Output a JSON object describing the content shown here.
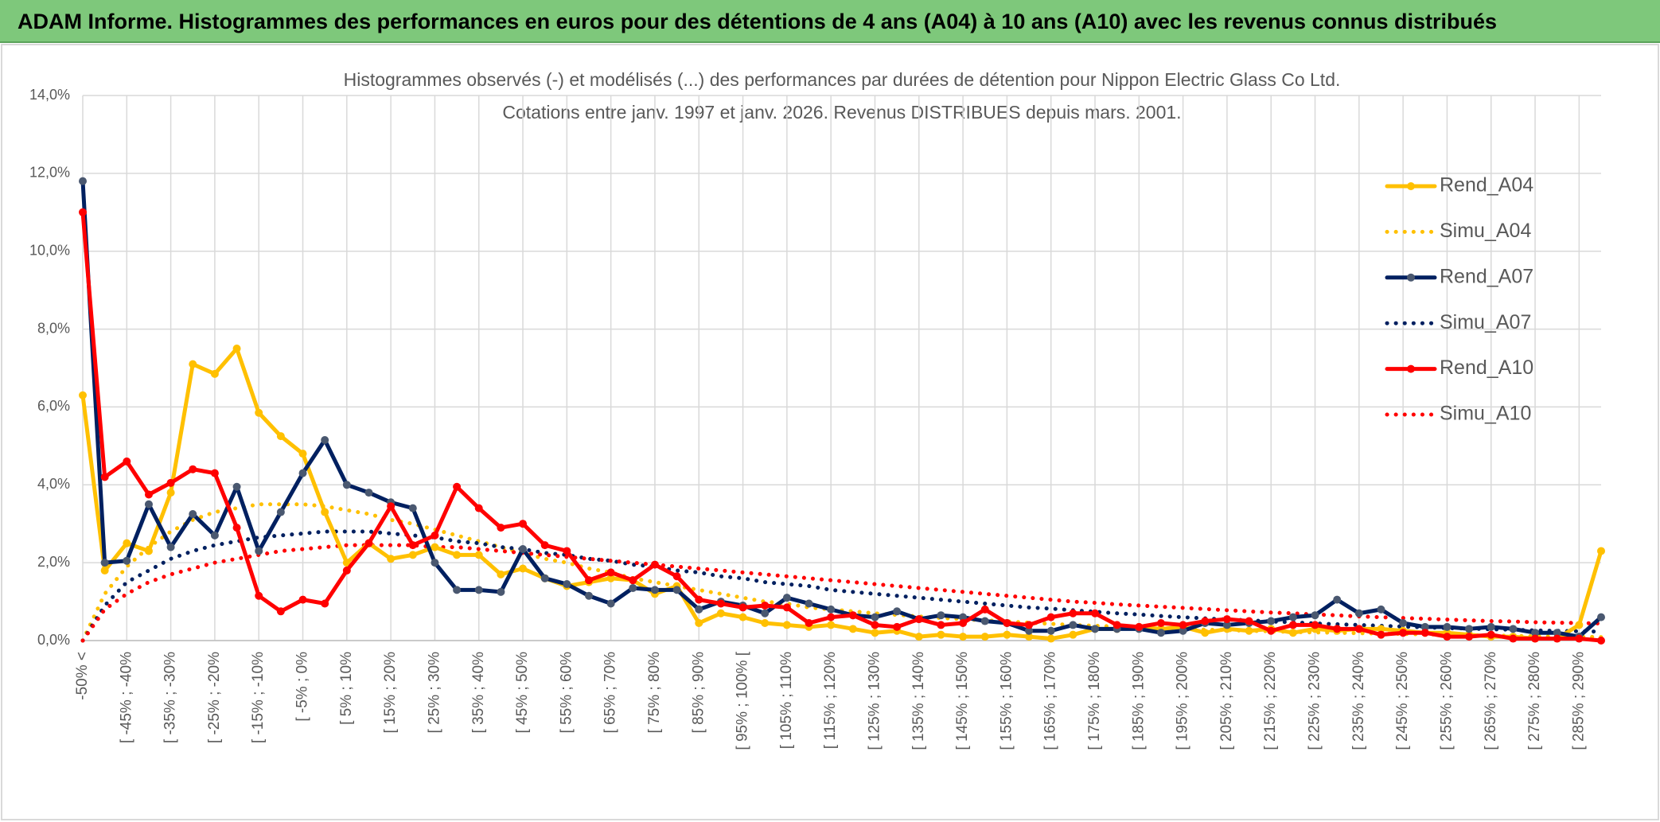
{
  "header": {
    "title": "ADAM Informe. Histogrammes des performances en euros pour des détentions de 4 ans (A04) à 10 ans (A10) avec les revenus connus distribués"
  },
  "chart_data": {
    "type": "line",
    "title": "Histogrammes observés (-) et modélisés (...) des performances par durées de détention pour Nippon Electric Glass Co Ltd.",
    "subtitle": "Cotations entre janv. 1997 et janv. 2026. Revenus DISTRIBUES depuis mars. 2001.",
    "categories": [
      "-50% <",
      null,
      "[ -45% ; -40%",
      null,
      "[ -35% ; -30%",
      null,
      "[ -25% ; -20%",
      null,
      "[ -15% ; -10%",
      null,
      "[ -5% ; 0%",
      null,
      "[ 5% ; 10%",
      null,
      "[ 15% ; 20%",
      null,
      "[ 25% ; 30%",
      null,
      "[ 35% ; 40%",
      null,
      "[ 45% ; 50%",
      null,
      "[ 55% ; 60%",
      null,
      "[ 65% ; 70%",
      null,
      "[ 75% ; 80%",
      null,
      "[ 85% ; 90%",
      null,
      "[ 95% ; 100% [",
      null,
      "[ 105% ; 110%",
      null,
      "[ 115% ; 120%",
      null,
      "[ 125% ; 130%",
      null,
      "[ 135% ; 140%",
      null,
      "[ 145% ; 150%",
      null,
      "[ 155% ; 160%",
      null,
      "[ 165% ; 170%",
      null,
      "[ 175% ; 180%",
      null,
      "[ 185% ; 190%",
      null,
      "[ 195% ; 200%",
      null,
      "[ 205% ; 210%",
      null,
      "[ 215% ; 220%",
      null,
      "[ 225% ; 230%",
      null,
      "[ 235% ; 240%",
      null,
      "[ 245% ; 250%",
      null,
      "[ 255% ; 260%",
      null,
      "[ 265% ; 270%",
      null,
      "[ 275% ; 280%",
      null,
      "[ 285% ; 290%",
      null
    ],
    "ylim": [
      0,
      14
    ],
    "yticks": [
      {
        "value": 0,
        "label": "0,0%"
      },
      {
        "value": 2,
        "label": "2,0%"
      },
      {
        "value": 4,
        "label": "4,0%"
      },
      {
        "value": 6,
        "label": "6,0%"
      },
      {
        "value": 8,
        "label": "8,0%"
      },
      {
        "value": 10,
        "label": "10,0%"
      },
      {
        "value": 12,
        "label": "12,0%"
      },
      {
        "value": 14,
        "label": "14,0%"
      }
    ],
    "grid": true,
    "legend": "right",
    "series": [
      {
        "name": "Rend_A04",
        "color": "#ffc000",
        "dash": "solid",
        "markers": true,
        "values": [
          6.3,
          1.8,
          2.5,
          2.3,
          3.8,
          7.1,
          6.85,
          7.5,
          5.85,
          5.25,
          4.8,
          3.3,
          2.0,
          2.5,
          2.1,
          2.2,
          2.4,
          2.2,
          2.2,
          1.7,
          1.85,
          1.6,
          1.4,
          1.5,
          1.6,
          1.55,
          1.2,
          1.4,
          0.45,
          0.7,
          0.6,
          0.45,
          0.4,
          0.35,
          0.4,
          0.3,
          0.2,
          0.25,
          0.1,
          0.15,
          0.1,
          0.1,
          0.15,
          0.1,
          0.05,
          0.15,
          0.3,
          0.3,
          0.35,
          0.3,
          0.35,
          0.2,
          0.3,
          0.25,
          0.3,
          0.2,
          0.3,
          0.25,
          0.3,
          0.3,
          0.25,
          0.2,
          0.2,
          0.15,
          0.1,
          0.1,
          0.05,
          0.05,
          0.4,
          2.3
        ]
      },
      {
        "name": "Simu_A04",
        "color": "#ffc000",
        "dash": "dotted",
        "markers": false,
        "values": [
          0,
          1.2,
          1.9,
          2.4,
          2.8,
          3.1,
          3.3,
          3.4,
          3.5,
          3.5,
          3.5,
          3.45,
          3.35,
          3.25,
          3.1,
          3.0,
          2.85,
          2.7,
          2.55,
          2.4,
          2.25,
          2.1,
          2.0,
          1.85,
          1.75,
          1.6,
          1.5,
          1.4,
          1.3,
          1.2,
          1.1,
          1.0,
          0.95,
          0.85,
          0.8,
          0.75,
          0.7,
          0.66,
          0.62,
          0.58,
          0.55,
          0.52,
          0.49,
          0.46,
          0.43,
          0.4,
          0.38,
          0.36,
          0.34,
          0.32,
          0.3,
          0.28,
          0.27,
          0.25,
          0.24,
          0.22,
          0.21,
          0.2,
          0.19,
          0.18,
          0.17,
          0.16,
          0.15,
          0.14,
          0.13,
          0.12,
          0.11,
          0.1,
          0.1,
          0.09
        ]
      },
      {
        "name": "Rend_A07",
        "color": "#002060",
        "dash": "solid",
        "markers": true,
        "values": [
          11.8,
          2.0,
          2.05,
          3.5,
          2.4,
          3.25,
          2.7,
          3.95,
          2.3,
          3.3,
          4.3,
          5.15,
          4.0,
          3.8,
          3.55,
          3.4,
          2.0,
          1.3,
          1.3,
          1.25,
          2.35,
          1.6,
          1.45,
          1.15,
          0.95,
          1.35,
          1.3,
          1.3,
          0.8,
          1.0,
          0.9,
          0.7,
          1.1,
          0.95,
          0.8,
          0.65,
          0.6,
          0.75,
          0.55,
          0.65,
          0.6,
          0.5,
          0.45,
          0.25,
          0.25,
          0.4,
          0.3,
          0.3,
          0.3,
          0.2,
          0.25,
          0.45,
          0.4,
          0.45,
          0.5,
          0.6,
          0.65,
          1.05,
          0.7,
          0.8,
          0.45,
          0.35,
          0.35,
          0.3,
          0.35,
          0.3,
          0.2,
          0.2,
          0.1,
          0.6
        ]
      },
      {
        "name": "Simu_A07",
        "color": "#002060",
        "dash": "dotted",
        "markers": false,
        "values": [
          0,
          0.9,
          1.5,
          1.8,
          2.1,
          2.3,
          2.45,
          2.55,
          2.65,
          2.7,
          2.75,
          2.8,
          2.8,
          2.8,
          2.75,
          2.7,
          2.65,
          2.55,
          2.5,
          2.4,
          2.35,
          2.25,
          2.2,
          2.1,
          2.05,
          1.95,
          1.9,
          1.8,
          1.75,
          1.65,
          1.6,
          1.5,
          1.45,
          1.4,
          1.3,
          1.25,
          1.2,
          1.15,
          1.1,
          1.05,
          1.0,
          0.95,
          0.9,
          0.85,
          0.82,
          0.78,
          0.74,
          0.7,
          0.67,
          0.63,
          0.6,
          0.57,
          0.54,
          0.52,
          0.49,
          0.47,
          0.44,
          0.42,
          0.4,
          0.38,
          0.36,
          0.34,
          0.32,
          0.31,
          0.29,
          0.28,
          0.26,
          0.25,
          0.24,
          0.23
        ]
      },
      {
        "name": "Rend_A10",
        "color": "#ff0000",
        "dash": "solid",
        "markers": true,
        "values": [
          11.0,
          4.2,
          4.6,
          3.75,
          4.05,
          4.4,
          4.3,
          2.9,
          1.15,
          0.75,
          1.05,
          0.95,
          1.8,
          2.5,
          3.45,
          2.45,
          2.7,
          3.95,
          3.4,
          2.9,
          3.0,
          2.45,
          2.3,
          1.55,
          1.75,
          1.55,
          1.95,
          1.65,
          1.05,
          0.95,
          0.85,
          0.9,
          0.85,
          0.45,
          0.6,
          0.65,
          0.4,
          0.35,
          0.55,
          0.4,
          0.45,
          0.8,
          0.45,
          0.4,
          0.6,
          0.7,
          0.7,
          0.4,
          0.35,
          0.45,
          0.4,
          0.5,
          0.55,
          0.5,
          0.25,
          0.4,
          0.4,
          0.3,
          0.3,
          0.15,
          0.2,
          0.2,
          0.1,
          0.1,
          0.15,
          0.05,
          0.05,
          0.05,
          0.05,
          0.0
        ]
      },
      {
        "name": "Simu_A10",
        "color": "#ff0000",
        "dash": "dotted",
        "markers": false,
        "values": [
          0,
          0.8,
          1.2,
          1.5,
          1.7,
          1.85,
          2.0,
          2.1,
          2.2,
          2.3,
          2.35,
          2.4,
          2.45,
          2.45,
          2.45,
          2.45,
          2.4,
          2.4,
          2.35,
          2.3,
          2.25,
          2.2,
          2.15,
          2.1,
          2.05,
          2.0,
          1.95,
          1.9,
          1.85,
          1.8,
          1.75,
          1.7,
          1.65,
          1.6,
          1.55,
          1.5,
          1.45,
          1.4,
          1.35,
          1.3,
          1.25,
          1.2,
          1.15,
          1.1,
          1.05,
          1.0,
          0.97,
          0.93,
          0.9,
          0.87,
          0.84,
          0.81,
          0.78,
          0.75,
          0.72,
          0.7,
          0.67,
          0.65,
          0.62,
          0.6,
          0.58,
          0.56,
          0.54,
          0.52,
          0.5,
          0.49,
          0.47,
          0.46,
          0.45,
          0.44
        ]
      }
    ]
  }
}
